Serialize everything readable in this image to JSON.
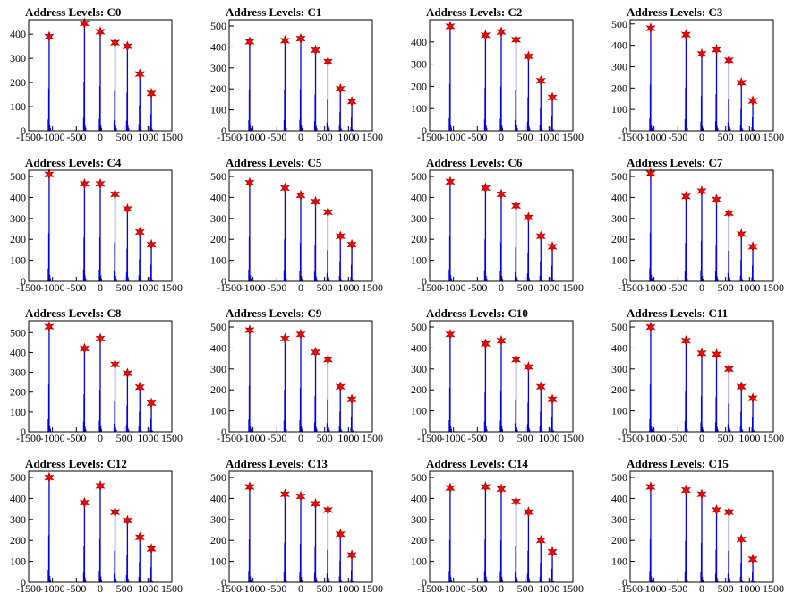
{
  "chart_data": [
    {
      "type": "bar",
      "title": "Address Levels: C0",
      "xlim": [
        -1500,
        1500
      ],
      "ylim": [
        0,
        460
      ],
      "yticks": [
        0,
        100,
        200,
        300,
        400
      ],
      "xticks": [
        -1500,
        -1000,
        -500,
        0,
        500,
        1000,
        1500
      ],
      "xticklabels": [
        "-1500",
        "-1000",
        "-500",
        "0",
        "500",
        "1000",
        "1500"
      ],
      "peaks": [
        {
          "x": -1070,
          "y": 390
        },
        {
          "x": -330,
          "y": 445
        },
        {
          "x": 0,
          "y": 410
        },
        {
          "x": 310,
          "y": 365
        },
        {
          "x": 570,
          "y": 350
        },
        {
          "x": 830,
          "y": 235
        },
        {
          "x": 1070,
          "y": 155
        }
      ]
    },
    {
      "type": "bar",
      "title": "Address Levels: C1",
      "xlim": [
        -1500,
        1500
      ],
      "ylim": [
        0,
        530
      ],
      "yticks": [
        0,
        100,
        200,
        300,
        400,
        500
      ],
      "xticks": [
        -1500,
        -1000,
        -500,
        0,
        500,
        1000,
        1500
      ],
      "xticklabels": [
        "-1500",
        "-1000",
        "-500",
        "0",
        "500",
        "1000",
        "1500"
      ],
      "peaks": [
        {
          "x": -1070,
          "y": 425
        },
        {
          "x": -330,
          "y": 430
        },
        {
          "x": 0,
          "y": 440
        },
        {
          "x": 310,
          "y": 385
        },
        {
          "x": 570,
          "y": 330
        },
        {
          "x": 830,
          "y": 200
        },
        {
          "x": 1070,
          "y": 140
        }
      ]
    },
    {
      "type": "bar",
      "title": "Address Levels: C2",
      "xlim": [
        -1500,
        1500
      ],
      "ylim": [
        0,
        500
      ],
      "yticks": [
        0,
        100,
        200,
        300,
        400
      ],
      "xticks": [
        -1500,
        -1000,
        -500,
        0,
        500,
        1000,
        1500
      ],
      "xticklabels": [
        "-1500",
        "-1000",
        "-500",
        "0",
        "500",
        "1000",
        "1500"
      ],
      "peaks": [
        {
          "x": -1070,
          "y": 470
        },
        {
          "x": -330,
          "y": 430
        },
        {
          "x": 0,
          "y": 445
        },
        {
          "x": 310,
          "y": 410
        },
        {
          "x": 570,
          "y": 335
        },
        {
          "x": 830,
          "y": 225
        },
        {
          "x": 1070,
          "y": 150
        }
      ]
    },
    {
      "type": "bar",
      "title": "Address Levels: C3",
      "xlim": [
        -1500,
        1500
      ],
      "ylim": [
        0,
        520
      ],
      "yticks": [
        0,
        100,
        200,
        300,
        400,
        500
      ],
      "xticks": [
        -1500,
        -1000,
        -500,
        0,
        500,
        1000,
        1500
      ],
      "xticklabels": [
        "-1500",
        "-1000",
        "-500",
        "0",
        "500",
        "1000",
        "1500"
      ],
      "peaks": [
        {
          "x": -1070,
          "y": 480
        },
        {
          "x": -330,
          "y": 450
        },
        {
          "x": 0,
          "y": 360
        },
        {
          "x": 310,
          "y": 380
        },
        {
          "x": 570,
          "y": 330
        },
        {
          "x": 830,
          "y": 225
        },
        {
          "x": 1070,
          "y": 140
        }
      ]
    },
    {
      "type": "bar",
      "title": "Address Levels: C4",
      "xlim": [
        -1500,
        1500
      ],
      "ylim": [
        0,
        530
      ],
      "yticks": [
        0,
        100,
        200,
        300,
        400,
        500
      ],
      "xticks": [
        -1500,
        -1000,
        -500,
        0,
        500,
        1000,
        1500
      ],
      "xticklabels": [
        "-1500",
        "-1000",
        "-500",
        "0",
        "500",
        "1000",
        "1500"
      ],
      "peaks": [
        {
          "x": -1070,
          "y": 510
        },
        {
          "x": -330,
          "y": 465
        },
        {
          "x": 0,
          "y": 465
        },
        {
          "x": 310,
          "y": 415
        },
        {
          "x": 570,
          "y": 345
        },
        {
          "x": 830,
          "y": 235
        },
        {
          "x": 1070,
          "y": 175
        }
      ]
    },
    {
      "type": "bar",
      "title": "Address Levels: C5",
      "xlim": [
        -1500,
        1500
      ],
      "ylim": [
        0,
        530
      ],
      "yticks": [
        0,
        100,
        200,
        300,
        400,
        500
      ],
      "xticks": [
        -1500,
        -1000,
        -500,
        0,
        500,
        1000,
        1500
      ],
      "xticklabels": [
        "-1500",
        "-1000",
        "-500",
        "0",
        "500",
        "1000",
        "1500"
      ],
      "peaks": [
        {
          "x": -1070,
          "y": 470
        },
        {
          "x": -330,
          "y": 445
        },
        {
          "x": 0,
          "y": 410
        },
        {
          "x": 310,
          "y": 380
        },
        {
          "x": 570,
          "y": 330
        },
        {
          "x": 830,
          "y": 215
        },
        {
          "x": 1070,
          "y": 175
        }
      ]
    },
    {
      "type": "bar",
      "title": "Address Levels: C6",
      "xlim": [
        -1500,
        1500
      ],
      "ylim": [
        0,
        530
      ],
      "yticks": [
        0,
        100,
        200,
        300,
        400,
        500
      ],
      "xticks": [
        -1500,
        -1000,
        -500,
        0,
        500,
        1000,
        1500
      ],
      "xticklabels": [
        "-1500",
        "-1000",
        "-500",
        "0",
        "500",
        "1000",
        "1500"
      ],
      "peaks": [
        {
          "x": -1070,
          "y": 475
        },
        {
          "x": -330,
          "y": 445
        },
        {
          "x": 0,
          "y": 415
        },
        {
          "x": 310,
          "y": 360
        },
        {
          "x": 570,
          "y": 305
        },
        {
          "x": 830,
          "y": 215
        },
        {
          "x": 1070,
          "y": 165
        }
      ]
    },
    {
      "type": "bar",
      "title": "Address Levels: C7",
      "xlim": [
        -1500,
        1500
      ],
      "ylim": [
        0,
        530
      ],
      "yticks": [
        0,
        100,
        200,
        300,
        400,
        500
      ],
      "xticks": [
        -1500,
        -1000,
        -500,
        0,
        500,
        1000,
        1500
      ],
      "xticklabels": [
        "-1500",
        "-1000",
        "-500",
        "0",
        "500",
        "1000",
        "1500"
      ],
      "peaks": [
        {
          "x": -1070,
          "y": 515
        },
        {
          "x": -330,
          "y": 405
        },
        {
          "x": 0,
          "y": 430
        },
        {
          "x": 310,
          "y": 390
        },
        {
          "x": 570,
          "y": 325
        },
        {
          "x": 830,
          "y": 225
        },
        {
          "x": 1070,
          "y": 165
        }
      ]
    },
    {
      "type": "bar",
      "title": "Address Levels: C8",
      "xlim": [
        -1500,
        1500
      ],
      "ylim": [
        0,
        560
      ],
      "yticks": [
        0,
        100,
        200,
        300,
        400,
        500
      ],
      "xticks": [
        -1500,
        -1000,
        -500,
        0,
        500,
        1000,
        1500
      ],
      "xticklabels": [
        "-1500",
        "-1000",
        "-500",
        "0",
        "500",
        "1000",
        "1500"
      ],
      "peaks": [
        {
          "x": -1070,
          "y": 530
        },
        {
          "x": -330,
          "y": 420
        },
        {
          "x": 0,
          "y": 470
        },
        {
          "x": 310,
          "y": 340
        },
        {
          "x": 570,
          "y": 295
        },
        {
          "x": 830,
          "y": 225
        },
        {
          "x": 1070,
          "y": 145
        }
      ]
    },
    {
      "type": "bar",
      "title": "Address Levels: C9",
      "xlim": [
        -1500,
        1500
      ],
      "ylim": [
        0,
        530
      ],
      "yticks": [
        0,
        100,
        200,
        300,
        400,
        500
      ],
      "xticks": [
        -1500,
        -1000,
        -500,
        0,
        500,
        1000,
        1500
      ],
      "xticklabels": [
        "-1500",
        "-1000",
        "-500",
        "0",
        "500",
        "1000",
        "1500"
      ],
      "peaks": [
        {
          "x": -1070,
          "y": 485
        },
        {
          "x": -330,
          "y": 445
        },
        {
          "x": 0,
          "y": 465
        },
        {
          "x": 310,
          "y": 380
        },
        {
          "x": 570,
          "y": 345
        },
        {
          "x": 830,
          "y": 215
        },
        {
          "x": 1070,
          "y": 155
        }
      ]
    },
    {
      "type": "bar",
      "title": "Address Levels: C10",
      "xlim": [
        -1500,
        1500
      ],
      "ylim": [
        0,
        530
      ],
      "yticks": [
        0,
        100,
        200,
        300,
        400,
        500
      ],
      "xticks": [
        -1500,
        -1000,
        -500,
        0,
        500,
        1000,
        1500
      ],
      "xticklabels": [
        "-1500",
        "-1000",
        "-500",
        "0",
        "500",
        "1000",
        "1500"
      ],
      "peaks": [
        {
          "x": -1070,
          "y": 465
        },
        {
          "x": -330,
          "y": 420
        },
        {
          "x": 0,
          "y": 435
        },
        {
          "x": 310,
          "y": 345
        },
        {
          "x": 570,
          "y": 310
        },
        {
          "x": 830,
          "y": 215
        },
        {
          "x": 1070,
          "y": 155
        }
      ]
    },
    {
      "type": "bar",
      "title": "Address Levels: C11",
      "xlim": [
        -1500,
        1500
      ],
      "ylim": [
        0,
        530
      ],
      "yticks": [
        0,
        100,
        200,
        300,
        400,
        500
      ],
      "xticks": [
        -1500,
        -1000,
        -500,
        0,
        500,
        1000,
        1500
      ],
      "xticklabels": [
        "-1500",
        "-1000",
        "-500",
        "0",
        "500",
        "1000",
        "1500"
      ],
      "peaks": [
        {
          "x": -1070,
          "y": 500
        },
        {
          "x": -330,
          "y": 435
        },
        {
          "x": 0,
          "y": 375
        },
        {
          "x": 310,
          "y": 370
        },
        {
          "x": 570,
          "y": 300
        },
        {
          "x": 830,
          "y": 215
        },
        {
          "x": 1070,
          "y": 160
        }
      ]
    },
    {
      "type": "bar",
      "title": "Address Levels: C12",
      "xlim": [
        -1500,
        1500
      ],
      "ylim": [
        0,
        530
      ],
      "yticks": [
        0,
        100,
        200,
        300,
        400,
        500
      ],
      "xticks": [
        -1500,
        -1000,
        -500,
        0,
        500,
        1000,
        1500
      ],
      "xticklabels": [
        "-1500",
        "-1000",
        "-500",
        "0",
        "500",
        "1000",
        "1500"
      ],
      "peaks": [
        {
          "x": -1070,
          "y": 500
        },
        {
          "x": -330,
          "y": 380
        },
        {
          "x": 0,
          "y": 460
        },
        {
          "x": 310,
          "y": 335
        },
        {
          "x": 570,
          "y": 295
        },
        {
          "x": 830,
          "y": 215
        },
        {
          "x": 1070,
          "y": 160
        }
      ]
    },
    {
      "type": "bar",
      "title": "Address Levels: C13",
      "xlim": [
        -1500,
        1500
      ],
      "ylim": [
        0,
        530
      ],
      "yticks": [
        0,
        100,
        200,
        300,
        400,
        500
      ],
      "xticks": [
        -1500,
        -1000,
        -500,
        0,
        500,
        1000,
        1500
      ],
      "xticklabels": [
        "-1500",
        "-1000",
        "-500",
        "0",
        "500",
        "1000",
        "1500"
      ],
      "peaks": [
        {
          "x": -1070,
          "y": 455
        },
        {
          "x": -330,
          "y": 420
        },
        {
          "x": 0,
          "y": 410
        },
        {
          "x": 310,
          "y": 375
        },
        {
          "x": 570,
          "y": 345
        },
        {
          "x": 830,
          "y": 230
        },
        {
          "x": 1070,
          "y": 130
        }
      ]
    },
    {
      "type": "bar",
      "title": "Address Levels: C14",
      "xlim": [
        -1500,
        1500
      ],
      "ylim": [
        0,
        530
      ],
      "yticks": [
        0,
        100,
        200,
        300,
        400,
        500
      ],
      "xticks": [
        -1500,
        -1000,
        -500,
        0,
        500,
        1000,
        1500
      ],
      "xticklabels": [
        "-1500",
        "-1000",
        "-500",
        "0",
        "500",
        "1000",
        "1500"
      ],
      "peaks": [
        {
          "x": -1070,
          "y": 450
        },
        {
          "x": -330,
          "y": 455
        },
        {
          "x": 0,
          "y": 445
        },
        {
          "x": 310,
          "y": 385
        },
        {
          "x": 570,
          "y": 335
        },
        {
          "x": 830,
          "y": 200
        },
        {
          "x": 1070,
          "y": 145
        }
      ]
    },
    {
      "type": "bar",
      "title": "Address Levels: C15",
      "xlim": [
        -1500,
        1500
      ],
      "ylim": [
        0,
        530
      ],
      "yticks": [
        0,
        100,
        200,
        300,
        400,
        500
      ],
      "xticks": [
        -1500,
        -1000,
        -500,
        0,
        500,
        1000,
        1500
      ],
      "xticklabels": [
        "-1500",
        "-1000",
        "-500",
        "0",
        "500",
        "1000",
        "1500"
      ],
      "peaks": [
        {
          "x": -1070,
          "y": 455
        },
        {
          "x": -330,
          "y": 440
        },
        {
          "x": 0,
          "y": 420
        },
        {
          "x": 310,
          "y": 345
        },
        {
          "x": 570,
          "y": 335
        },
        {
          "x": 830,
          "y": 205
        },
        {
          "x": 1070,
          "y": 110
        }
      ]
    }
  ],
  "colors": {
    "spike": "#0000ee",
    "marker": "#ff0000",
    "frame": "#000000"
  }
}
